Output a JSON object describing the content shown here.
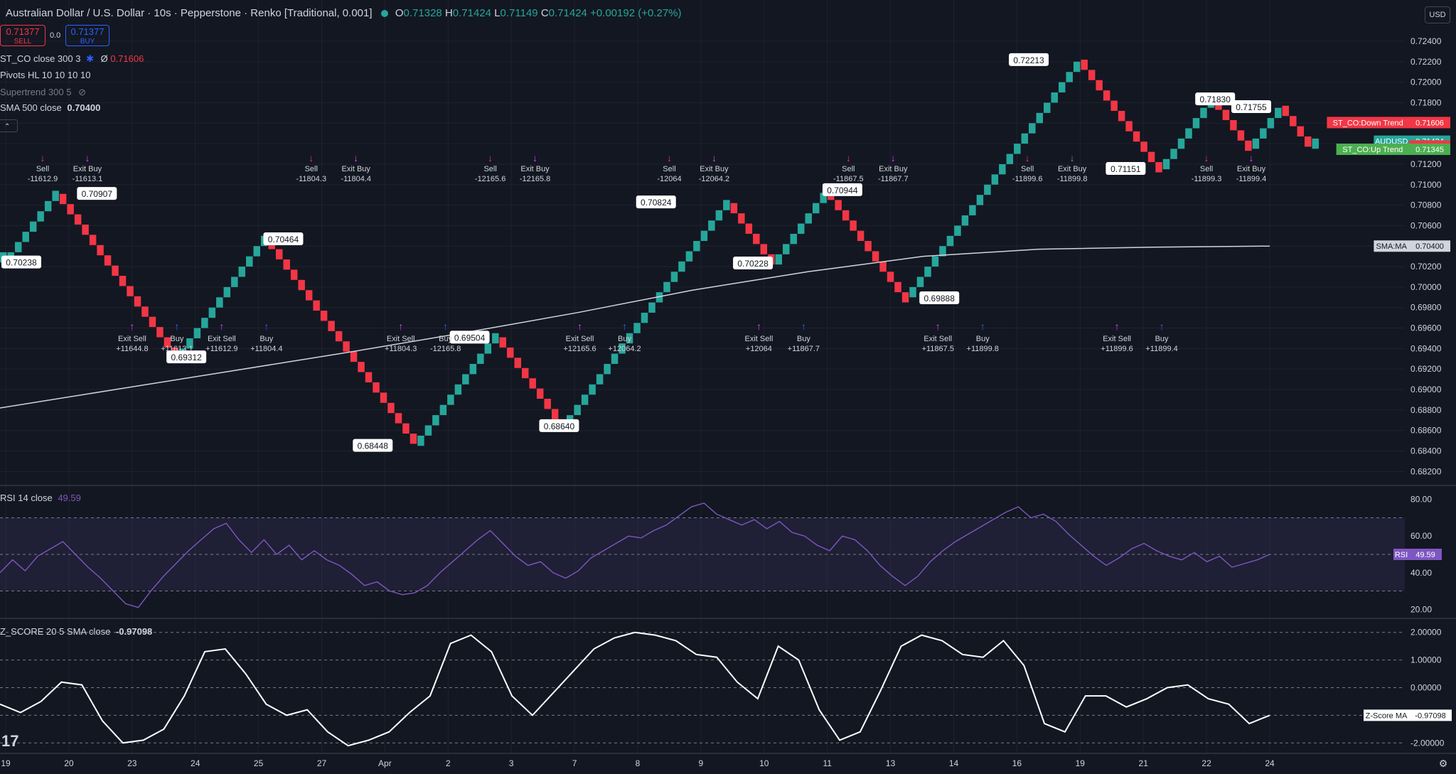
{
  "header": {
    "title": "Australian Dollar / U.S. Dollar · 10s · Pepperstone · Renko [Traditional, 0.001]",
    "o_label": "O",
    "o": "0.71328",
    "h_label": "H",
    "h": "0.71424",
    "l_label": "L",
    "l": "0.71149",
    "c_label": "C",
    "c": "0.71424",
    "change": "+0.00192 (+0.27%)",
    "sell_price": "0.71377",
    "sell_label": "SELL",
    "spread": "0.0",
    "buy_price": "0.71377",
    "buy_label": "BUY",
    "currency": "USD"
  },
  "indicators": {
    "st_co": {
      "name": "ST_CO close 300 3",
      "value_prefix": "Ø",
      "value": "0.71606"
    },
    "pivots": {
      "name": "Pivots HL 10 10 10 10"
    },
    "supertrend": {
      "name": "Supertrend 300 5"
    },
    "sma": {
      "name": "SMA 500 close",
      "value": "0.70400"
    },
    "rsi": {
      "name": "RSI 14 close",
      "value": "49.59"
    },
    "zscore": {
      "name": "Z_SCORE 20 5 SMA close",
      "value": "-0.97098"
    }
  },
  "colors": {
    "up": "#26a69a",
    "down": "#f23645",
    "background": "#131722",
    "grid": "#1e222d",
    "sma": "#d1d4dc",
    "rsi": "#7e57c2",
    "buy_arrow": "#2962ff",
    "exit_marker": "#e040fb",
    "text": "#d1d4dc"
  },
  "chart_data": [
    {
      "type": "renko",
      "box_size": 0.001,
      "ylim": [
        0.6814,
        0.7249
      ],
      "y_ticks": [
        "0.72400",
        "0.72200",
        "0.72000",
        "0.71800",
        "0.71600",
        "0.71400",
        "0.71200",
        "0.71000",
        "0.70800",
        "0.70600",
        "0.70400",
        "0.70200",
        "0.70000",
        "0.69800",
        "0.69600",
        "0.69400",
        "0.69200",
        "0.69000",
        "0.68800",
        "0.68600",
        "0.68400",
        "0.68200"
      ],
      "x_ticks": [
        "19",
        "20",
        "23",
        "24",
        "25",
        "27",
        "Apr",
        "2",
        "3",
        "7",
        "8",
        "9",
        "10",
        "11",
        "13",
        "14",
        "16",
        "19",
        "21",
        "22",
        "24"
      ],
      "renko_pivots": [
        0.7024,
        0.7024,
        0.7091,
        0.693,
        0.7047,
        0.6845,
        0.6951,
        0.6865,
        0.7082,
        0.7022,
        0.7095,
        0.699,
        0.7222,
        0.7115,
        0.7183,
        0.7135,
        0.7177,
        0.7135,
        0.7142
      ],
      "sma_line": [
        0.6882,
        0.69,
        0.6918,
        0.6936,
        0.6955,
        0.6975,
        0.6997,
        0.7015,
        0.703,
        0.7037,
        0.7039,
        0.704
      ],
      "pivot_labels": [
        "0.70238",
        "0.70907",
        "0.69312",
        "0.70464",
        "0.68448",
        "0.69504",
        "0.68640",
        "0.70824",
        "0.70228",
        "0.70944",
        "0.69888",
        "0.72213",
        "0.71151",
        "0.71830",
        "0.71755"
      ],
      "trade_labels": [
        {
          "name": "Sell",
          "value": "-11612.9"
        },
        {
          "name": "Exit Buy",
          "value": "-11613.1"
        },
        {
          "name": "Exit Sell",
          "value": "+11644.8"
        },
        {
          "name": "Buy",
          "value": "+11613.1"
        },
        {
          "name": "Exit Sell",
          "value": "+11612.9"
        },
        {
          "name": "Buy",
          "value": "+11804.4"
        },
        {
          "name": "Sell",
          "value": "-11804.3"
        },
        {
          "name": "Exit Buy",
          "value": "-11804.4"
        },
        {
          "name": "Exit Sell",
          "value": "+11804.3"
        },
        {
          "name": "Buy",
          "value": "-12165.8"
        },
        {
          "name": "Sell",
          "value": "-12165.6"
        },
        {
          "name": "Exit Buy",
          "value": "-12165.8"
        },
        {
          "name": "Exit Sell",
          "value": "+12165.6"
        },
        {
          "name": "Buy",
          "value": "+12064.2"
        },
        {
          "name": "Sell",
          "value": "-12064"
        },
        {
          "name": "Exit Buy",
          "value": "-12064.2"
        },
        {
          "name": "Exit Sell",
          "value": "+12064"
        },
        {
          "name": "Buy",
          "value": "+11867.7"
        },
        {
          "name": "Sell",
          "value": "-11867.5"
        },
        {
          "name": "Exit Buy",
          "value": "-11867.7"
        },
        {
          "name": "Exit Sell",
          "value": "+11867.5"
        },
        {
          "name": "Buy",
          "value": "+11899.8"
        },
        {
          "name": "Sell",
          "value": "-11899.6"
        },
        {
          "name": "Exit Buy",
          "value": "-11899.8"
        },
        {
          "name": "Exit Sell",
          "value": "+11899.6"
        },
        {
          "name": "Buy",
          "value": "+11899.4"
        },
        {
          "name": "Sell",
          "value": "-11899.3"
        },
        {
          "name": "Exit Buy",
          "value": "-11899.4"
        }
      ],
      "axis_badges": [
        {
          "text": "ST_CO:Down Trend",
          "value": "0.71606",
          "color": "#f23645"
        },
        {
          "text": "AUDUSD",
          "value": "0.71424",
          "color": "#26a69a"
        },
        {
          "text": "",
          "value": "0.71377",
          "color": "#f23645"
        },
        {
          "text": "ST_CO:Up Trend",
          "value": "0.71345",
          "color": "#4caf50"
        },
        {
          "text": "SMA:MA",
          "value": "0.70400",
          "color": "#d1d4dc"
        }
      ]
    },
    {
      "type": "line",
      "name": "RSI",
      "ylim": [
        17,
        83
      ],
      "y_ticks": [
        "80.00",
        "60.00",
        "40.00",
        "20.00"
      ],
      "bands": [
        70,
        50,
        30
      ],
      "values": [
        40,
        47,
        41,
        49,
        53,
        57,
        50,
        43,
        37,
        30,
        23,
        21,
        30,
        38,
        45,
        52,
        58,
        64,
        67,
        58,
        51,
        58,
        50,
        55,
        47,
        52,
        47,
        44,
        39,
        33,
        35,
        30,
        28,
        29,
        33,
        40,
        46,
        52,
        58,
        63,
        56,
        49,
        44,
        46,
        40,
        37,
        41,
        48,
        52,
        56,
        60,
        59,
        63,
        66,
        71,
        76,
        78,
        72,
        69,
        66,
        69,
        64,
        68,
        62,
        60,
        55,
        52,
        60,
        58,
        52,
        44,
        38,
        33,
        38,
        46,
        52,
        57,
        61,
        65,
        69,
        73,
        76,
        70,
        72,
        68,
        61,
        55,
        49,
        44,
        48,
        53,
        56,
        52,
        49,
        47,
        51,
        46,
        49,
        43,
        45,
        47,
        50
      ],
      "badge": {
        "text": "RSI",
        "value": "49.59"
      }
    },
    {
      "type": "line",
      "name": "Z-Score MA",
      "ylim": [
        -2.25,
        2.25
      ],
      "y_ticks": [
        "2.00000",
        "1.00000",
        "0.00000",
        "-1.00000",
        "-2.00000"
      ],
      "values": [
        -0.6,
        -0.9,
        -0.5,
        0.2,
        0.1,
        -1.2,
        -2.0,
        -1.9,
        -1.5,
        -0.3,
        1.3,
        1.4,
        0.5,
        -0.6,
        -1.0,
        -0.8,
        -1.6,
        -2.1,
        -1.9,
        -1.6,
        -0.9,
        -0.3,
        1.6,
        1.9,
        1.3,
        -0.3,
        -1.0,
        -0.2,
        0.6,
        1.4,
        1.8,
        2.0,
        1.9,
        1.7,
        1.2,
        1.1,
        0.2,
        -0.4,
        1.5,
        1.0,
        -0.8,
        -1.9,
        -1.6,
        -0.1,
        1.5,
        1.9,
        1.7,
        1.2,
        1.1,
        1.7,
        0.8,
        -1.3,
        -1.6,
        -0.3,
        -0.3,
        -0.7,
        -0.4,
        0.0,
        0.1,
        -0.4,
        -0.6,
        -1.3,
        -1.0
      ],
      "badge": {
        "text": "Z-Score MA",
        "value": "-0.97098"
      }
    }
  ]
}
